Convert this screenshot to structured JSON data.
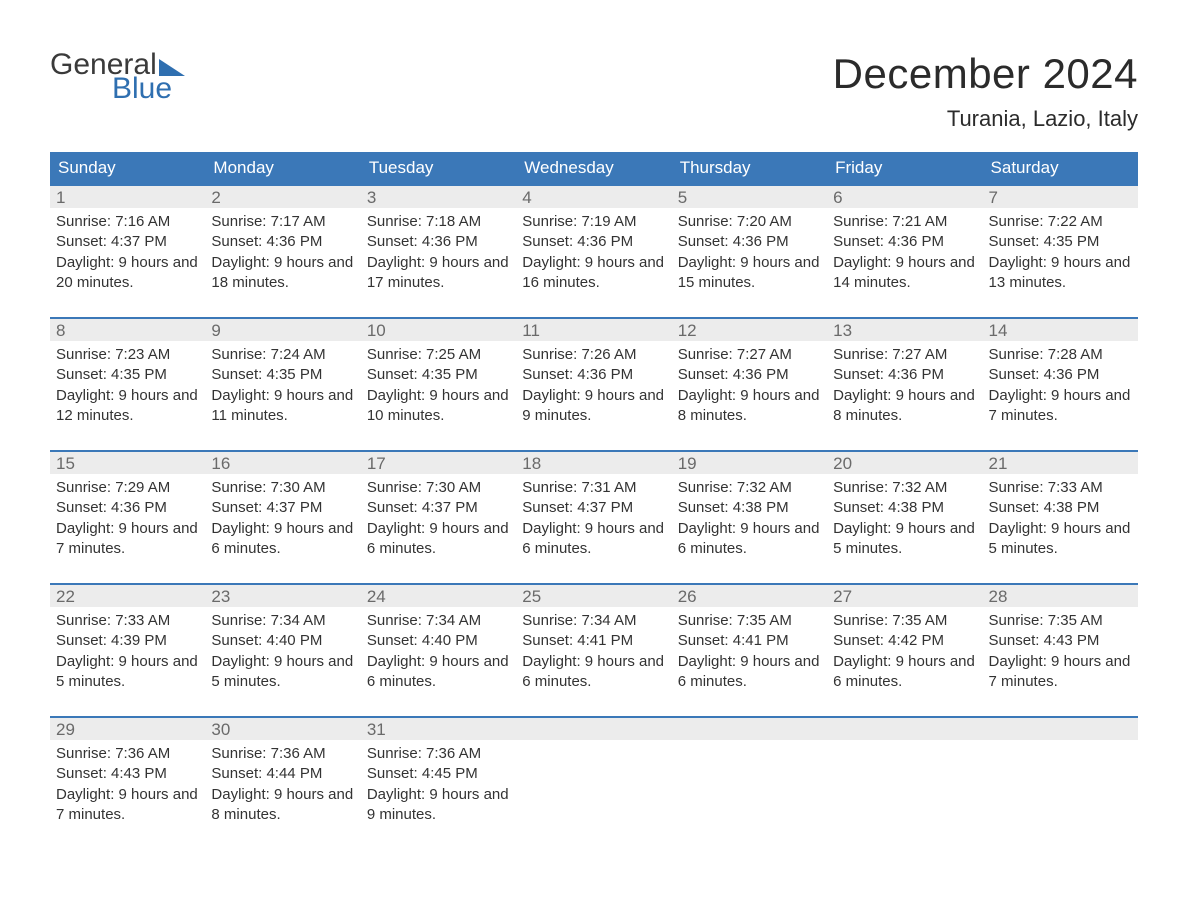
{
  "logo": {
    "word1": "General",
    "word2": "Blue"
  },
  "title": "December 2024",
  "location": "Turania, Lazio, Italy",
  "colors": {
    "header_bg": "#3b78b8",
    "header_text": "#ffffff",
    "band_bg": "#ececec",
    "band_border": "#3b78b8",
    "daynum_text": "#6a6a6a",
    "body_text": "#333333",
    "logo_dark": "#3a3a3a",
    "logo_blue": "#2f6fb0",
    "page_bg": "#ffffff"
  },
  "day_headers": [
    "Sunday",
    "Monday",
    "Tuesday",
    "Wednesday",
    "Thursday",
    "Friday",
    "Saturday"
  ],
  "labels": {
    "sunrise": "Sunrise:",
    "sunset": "Sunset:",
    "daylight": "Daylight:"
  },
  "weeks": [
    [
      {
        "n": "1",
        "sr": "7:16 AM",
        "ss": "4:37 PM",
        "dl": "9 hours and 20 minutes."
      },
      {
        "n": "2",
        "sr": "7:17 AM",
        "ss": "4:36 PM",
        "dl": "9 hours and 18 minutes."
      },
      {
        "n": "3",
        "sr": "7:18 AM",
        "ss": "4:36 PM",
        "dl": "9 hours and 17 minutes."
      },
      {
        "n": "4",
        "sr": "7:19 AM",
        "ss": "4:36 PM",
        "dl": "9 hours and 16 minutes."
      },
      {
        "n": "5",
        "sr": "7:20 AM",
        "ss": "4:36 PM",
        "dl": "9 hours and 15 minutes."
      },
      {
        "n": "6",
        "sr": "7:21 AM",
        "ss": "4:36 PM",
        "dl": "9 hours and 14 minutes."
      },
      {
        "n": "7",
        "sr": "7:22 AM",
        "ss": "4:35 PM",
        "dl": "9 hours and 13 minutes."
      }
    ],
    [
      {
        "n": "8",
        "sr": "7:23 AM",
        "ss": "4:35 PM",
        "dl": "9 hours and 12 minutes."
      },
      {
        "n": "9",
        "sr": "7:24 AM",
        "ss": "4:35 PM",
        "dl": "9 hours and 11 minutes."
      },
      {
        "n": "10",
        "sr": "7:25 AM",
        "ss": "4:35 PM",
        "dl": "9 hours and 10 minutes."
      },
      {
        "n": "11",
        "sr": "7:26 AM",
        "ss": "4:36 PM",
        "dl": "9 hours and 9 minutes."
      },
      {
        "n": "12",
        "sr": "7:27 AM",
        "ss": "4:36 PM",
        "dl": "9 hours and 8 minutes."
      },
      {
        "n": "13",
        "sr": "7:27 AM",
        "ss": "4:36 PM",
        "dl": "9 hours and 8 minutes."
      },
      {
        "n": "14",
        "sr": "7:28 AM",
        "ss": "4:36 PM",
        "dl": "9 hours and 7 minutes."
      }
    ],
    [
      {
        "n": "15",
        "sr": "7:29 AM",
        "ss": "4:36 PM",
        "dl": "9 hours and 7 minutes."
      },
      {
        "n": "16",
        "sr": "7:30 AM",
        "ss": "4:37 PM",
        "dl": "9 hours and 6 minutes."
      },
      {
        "n": "17",
        "sr": "7:30 AM",
        "ss": "4:37 PM",
        "dl": "9 hours and 6 minutes."
      },
      {
        "n": "18",
        "sr": "7:31 AM",
        "ss": "4:37 PM",
        "dl": "9 hours and 6 minutes."
      },
      {
        "n": "19",
        "sr": "7:32 AM",
        "ss": "4:38 PM",
        "dl": "9 hours and 6 minutes."
      },
      {
        "n": "20",
        "sr": "7:32 AM",
        "ss": "4:38 PM",
        "dl": "9 hours and 5 minutes."
      },
      {
        "n": "21",
        "sr": "7:33 AM",
        "ss": "4:38 PM",
        "dl": "9 hours and 5 minutes."
      }
    ],
    [
      {
        "n": "22",
        "sr": "7:33 AM",
        "ss": "4:39 PM",
        "dl": "9 hours and 5 minutes."
      },
      {
        "n": "23",
        "sr": "7:34 AM",
        "ss": "4:40 PM",
        "dl": "9 hours and 5 minutes."
      },
      {
        "n": "24",
        "sr": "7:34 AM",
        "ss": "4:40 PM",
        "dl": "9 hours and 6 minutes."
      },
      {
        "n": "25",
        "sr": "7:34 AM",
        "ss": "4:41 PM",
        "dl": "9 hours and 6 minutes."
      },
      {
        "n": "26",
        "sr": "7:35 AM",
        "ss": "4:41 PM",
        "dl": "9 hours and 6 minutes."
      },
      {
        "n": "27",
        "sr": "7:35 AM",
        "ss": "4:42 PM",
        "dl": "9 hours and 6 minutes."
      },
      {
        "n": "28",
        "sr": "7:35 AM",
        "ss": "4:43 PM",
        "dl": "9 hours and 7 minutes."
      }
    ],
    [
      {
        "n": "29",
        "sr": "7:36 AM",
        "ss": "4:43 PM",
        "dl": "9 hours and 7 minutes."
      },
      {
        "n": "30",
        "sr": "7:36 AM",
        "ss": "4:44 PM",
        "dl": "9 hours and 8 minutes."
      },
      {
        "n": "31",
        "sr": "7:36 AM",
        "ss": "4:45 PM",
        "dl": "9 hours and 9 minutes."
      },
      null,
      null,
      null,
      null
    ]
  ]
}
